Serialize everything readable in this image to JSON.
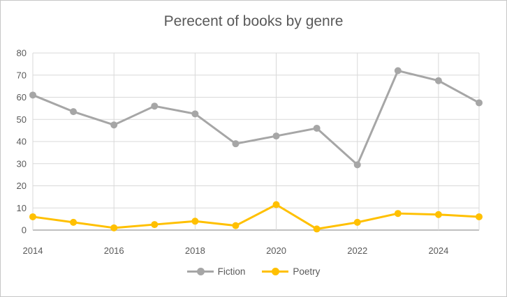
{
  "chart_data": {
    "type": "line",
    "title": "Perecent of books by genre",
    "x": [
      2014,
      2015,
      2016,
      2017,
      2018,
      2019,
      2020,
      2021,
      2022,
      2023,
      2024,
      2025
    ],
    "series": [
      {
        "name": "Fiction",
        "color": "#a6a6a6",
        "values": [
          61,
          53.5,
          47.5,
          56,
          52.5,
          39,
          42.5,
          46,
          29.5,
          72,
          67.5,
          57.5
        ]
      },
      {
        "name": "Poetry",
        "color": "#ffc000",
        "values": [
          6,
          3.5,
          1,
          2.5,
          4,
          2,
          11.5,
          0.5,
          3.5,
          7.5,
          7,
          6
        ]
      }
    ],
    "xlabel": "",
    "ylabel": "",
    "ylim": [
      0,
      80
    ],
    "yticks": [
      0,
      10,
      20,
      30,
      40,
      50,
      60,
      70,
      80
    ],
    "xtick_labels": [
      "2014",
      "2016",
      "2018",
      "2020",
      "2022",
      "2024"
    ],
    "xtick_indices": [
      0,
      2,
      4,
      6,
      8,
      10
    ],
    "grid": true,
    "legend_position": "bottom-center",
    "style": {
      "gridline_color": "#d9d9d9",
      "axis_line_color": "#bfbfbf",
      "tick_label_color": "#595959",
      "title_color": "#595959",
      "background": "#ffffff",
      "line_width": 3,
      "marker_radius": 5
    }
  }
}
